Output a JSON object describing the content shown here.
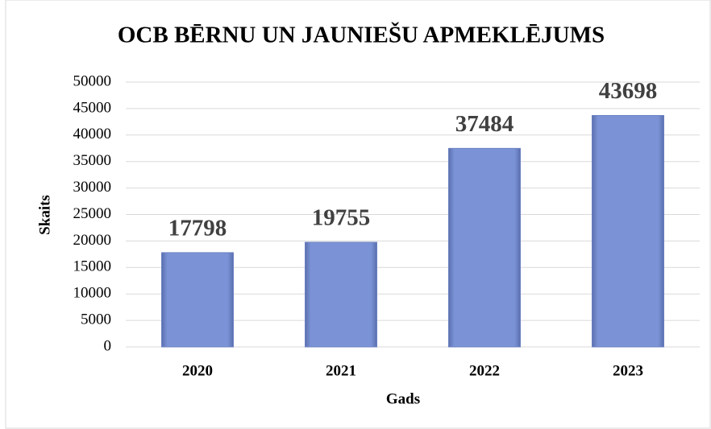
{
  "chart_data": {
    "type": "bar",
    "title": "OCB BĒRNU UN JAUNIEŠU APMEKLĒJUMS",
    "categories": [
      "2020",
      "2021",
      "2022",
      "2023"
    ],
    "values": [
      17798,
      19755,
      37484,
      43698
    ],
    "color": "#7b93d6",
    "ylim": [
      0,
      50000
    ],
    "yticks": [
      0,
      5000,
      10000,
      15000,
      20000,
      25000,
      30000,
      35000,
      40000,
      45000,
      50000
    ],
    "grid": true,
    "x_label": "Gads",
    "y_label": "Skaits"
  }
}
